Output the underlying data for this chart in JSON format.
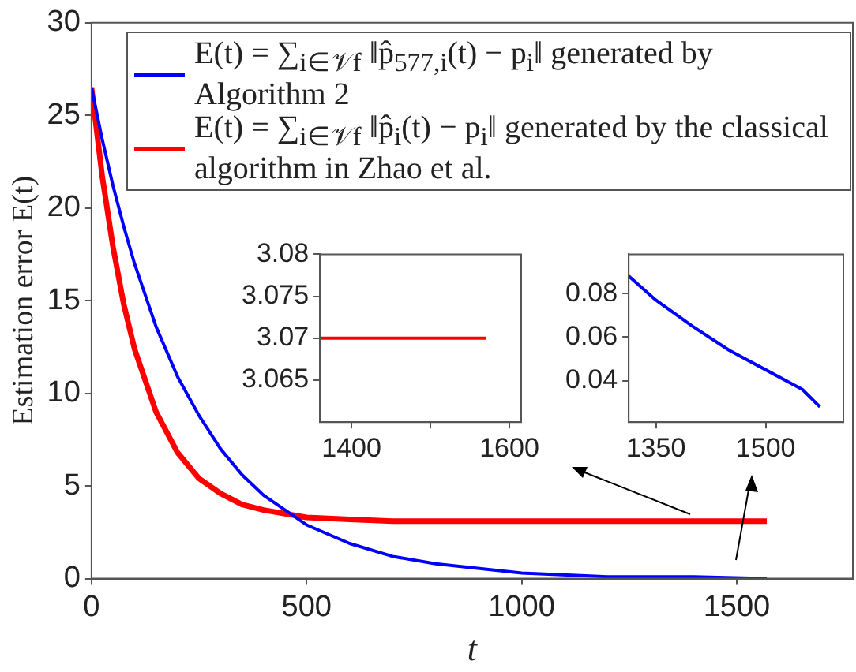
{
  "chart_data": [
    {
      "type": "line",
      "xlabel": "t",
      "ylabel": "Estimation error E(t)",
      "legend": "top",
      "xlim": [
        0,
        1770
      ],
      "ylim": [
        0,
        30
      ],
      "xticks": [
        0,
        500,
        1000,
        1500
      ],
      "yticks": [
        0,
        5,
        10,
        15,
        20,
        25,
        30
      ],
      "series": [
        {
          "name": "E(t) = ∑$_{i∈𝒱f}$ ‖p̂$_{577,i}$(t) − p$_{i}$‖ generated by Algorithm 2",
          "color": "#0000ff",
          "x": [
            0,
            25,
            50,
            75,
            100,
            150,
            200,
            250,
            300,
            350,
            400,
            500,
            600,
            700,
            800,
            1000,
            1200,
            1400,
            1570
          ],
          "values": [
            26.5,
            23.7,
            21.2,
            19.0,
            17.0,
            13.6,
            10.9,
            8.8,
            7.0,
            5.6,
            4.5,
            2.9,
            1.9,
            1.2,
            0.8,
            0.3,
            0.1,
            0.1,
            0.0
          ]
        },
        {
          "name": "E(t) = ∑$_{i∈𝒱f}$ ‖p̂$_{i}$(t) − p$_{i}$‖ generated by the classical algorithm in Zhao et al.",
          "color": "#ff0000",
          "x": [
            0,
            25,
            50,
            75,
            100,
            150,
            200,
            250,
            300,
            350,
            400,
            500,
            600,
            700,
            800,
            1000,
            1200,
            1400,
            1570
          ],
          "values": [
            26.5,
            21.7,
            17.9,
            14.8,
            12.4,
            9.0,
            6.8,
            5.4,
            4.6,
            4.0,
            3.7,
            3.3,
            3.2,
            3.1,
            3.1,
            3.1,
            3.1,
            3.1,
            3.1
          ]
        }
      ]
    },
    {
      "type": "line",
      "xlim": [
        1360,
        1615
      ],
      "ylim": [
        3.06,
        3.08
      ],
      "xticks": [
        1400,
        {
          "value": 1500,
          "label": null
        },
        1600
      ],
      "yticks": [
        3.065,
        3.07,
        3.075,
        3.08
      ],
      "series": [
        {
          "color": "#ff0000",
          "x": [
            1360,
            1570
          ],
          "values": [
            3.07,
            3.07
          ]
        }
      ]
    },
    {
      "type": "line",
      "xlim": [
        1313,
        1606
      ],
      "ylim": [
        0.021,
        0.098
      ],
      "xticks": [
        1350,
        1500
      ],
      "yticks": [
        0.04,
        0.06,
        0.08
      ],
      "series": [
        {
          "color": "#0000ff",
          "x": [
            1313,
            1350,
            1400,
            1450,
            1500,
            1550,
            1574
          ],
          "values": [
            0.088,
            0.077,
            0.065,
            0.054,
            0.045,
            0.036,
            0.028
          ]
        }
      ]
    }
  ]
}
